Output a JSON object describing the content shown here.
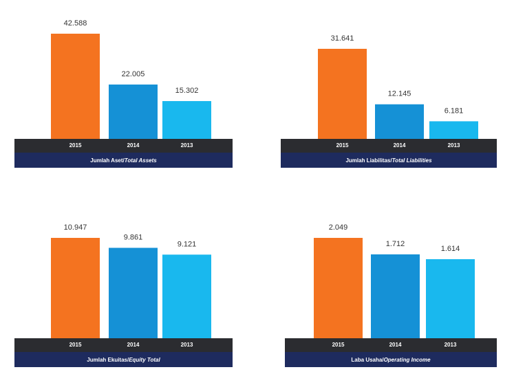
{
  "colors": {
    "y2015": "#f47320",
    "y2014": "#1591d6",
    "y2013": "#19b8ee",
    "axis_band": "#2b2c30",
    "title_band": "#1e2b5e"
  },
  "chart_data": [
    {
      "type": "bar",
      "title_plain": "Jumlah Aset/",
      "title_italic": "Total Assets",
      "categories": [
        "2015",
        "2014",
        "2013"
      ],
      "values": [
        42588,
        22005,
        15302
      ],
      "labels": [
        "42.588",
        "22.005",
        "15.302"
      ],
      "ylim": [
        0,
        42588
      ],
      "grid": false,
      "legend": "none"
    },
    {
      "type": "bar",
      "title_plain": "Jumlah Liabilitas/",
      "title_italic": "Total Liabilities",
      "categories": [
        "2015",
        "2014",
        "2013"
      ],
      "values": [
        31641,
        12145,
        6181
      ],
      "labels": [
        "31.641",
        "12.145",
        "6.181"
      ],
      "ylim": [
        0,
        31641
      ],
      "grid": false,
      "legend": "none"
    },
    {
      "type": "bar",
      "title_plain": "Jumlah Ekuitas/",
      "title_italic": "Equity Total",
      "categories": [
        "2015",
        "2014",
        "2013"
      ],
      "values": [
        10947,
        9861,
        9121
      ],
      "labels": [
        "10.947",
        "9.861",
        "9.121"
      ],
      "ylim": [
        0,
        10947
      ],
      "grid": false,
      "legend": "none"
    },
    {
      "type": "bar",
      "title_plain": "Laba Usaha/",
      "title_italic": "Operating Income",
      "categories": [
        "2015",
        "2014",
        "2013"
      ],
      "values": [
        2049,
        1712,
        1614
      ],
      "labels": [
        "2.049",
        "1.712",
        "1.614"
      ],
      "ylim": [
        0,
        2049
      ],
      "grid": false,
      "legend": "none"
    }
  ]
}
